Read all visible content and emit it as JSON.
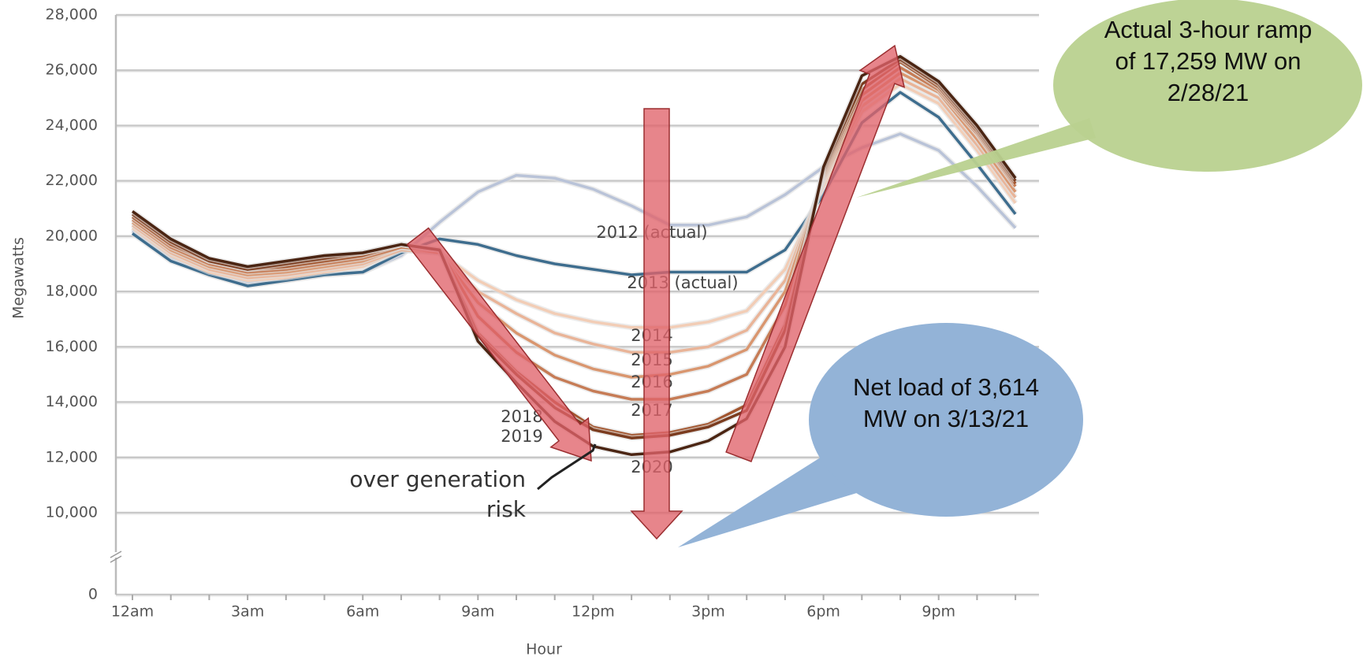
{
  "chart_data": {
    "type": "line",
    "x_label": "Hour",
    "y_label": "Megawatts",
    "categories": [
      "12am",
      null,
      null,
      "3am",
      null,
      null,
      "6am",
      null,
      null,
      "9am",
      null,
      null,
      "12pm",
      null,
      null,
      "3pm",
      null,
      null,
      "6pm",
      null,
      null,
      "9pm",
      null,
      null
    ],
    "ylim": [
      0,
      28000
    ],
    "y_break": [
      0,
      10000
    ],
    "yticks": [
      {
        "value": 0,
        "label": "0"
      },
      {
        "value": 10000,
        "label": "10,000"
      },
      {
        "value": 12000,
        "label": "12,000"
      },
      {
        "value": 14000,
        "label": "14,000"
      },
      {
        "value": 16000,
        "label": "16,000"
      },
      {
        "value": 18000,
        "label": "18,000"
      },
      {
        "value": 20000,
        "label": "20,000"
      },
      {
        "value": 22000,
        "label": "22,000"
      },
      {
        "value": 24000,
        "label": "24,000"
      },
      {
        "value": 26000,
        "label": "26,000"
      },
      {
        "value": 28000,
        "label": "28,000"
      }
    ],
    "grid": true,
    "series": [
      {
        "name": "2012 (actual)",
        "color": "#b9c3d8",
        "values": [
          20200,
          19200,
          18600,
          18300,
          18400,
          18600,
          18700,
          19300,
          20500,
          21600,
          22200,
          22100,
          21700,
          21100,
          20400,
          20400,
          20700,
          21500,
          22500,
          23200,
          23700,
          23100,
          21800,
          20300
        ]
      },
      {
        "name": "2013 (actual)",
        "color": "#3e6d8e",
        "values": [
          20100,
          19100,
          18600,
          18200,
          18400,
          18600,
          18700,
          19400,
          19900,
          19700,
          19300,
          19000,
          18800,
          18600,
          18700,
          18700,
          18700,
          19500,
          21500,
          24100,
          25200,
          24300,
          22600,
          20800
        ]
      },
      {
        "name": "2014",
        "color": "#f2cdb6",
        "values": [
          20300,
          19300,
          18700,
          18400,
          18500,
          18700,
          18900,
          19500,
          19400,
          18400,
          17700,
          17200,
          16900,
          16700,
          16700,
          16900,
          17300,
          18800,
          21800,
          24500,
          25500,
          24800,
          23100,
          21200
        ]
      },
      {
        "name": "2015",
        "color": "#e9b498",
        "values": [
          20400,
          19400,
          18800,
          18500,
          18600,
          18800,
          19000,
          19500,
          19400,
          18000,
          17200,
          16500,
          16100,
          15800,
          15800,
          16000,
          16600,
          18400,
          22000,
          24700,
          25700,
          25000,
          23300,
          21400
        ]
      },
      {
        "name": "2016",
        "color": "#d9966f",
        "values": [
          20500,
          19500,
          18900,
          18600,
          18700,
          18900,
          19100,
          19600,
          19400,
          17600,
          16500,
          15700,
          15200,
          14900,
          15000,
          15300,
          15900,
          18000,
          22100,
          24900,
          25900,
          25200,
          23500,
          21600
        ]
      },
      {
        "name": "2017",
        "color": "#c67c56",
        "values": [
          20600,
          19600,
          19000,
          18700,
          18800,
          19000,
          19200,
          19600,
          19500,
          17100,
          15800,
          14900,
          14400,
          14100,
          14100,
          14400,
          15000,
          17500,
          22200,
          25100,
          26100,
          25300,
          23700,
          21800
        ]
      },
      {
        "name": "2018",
        "color": "#a2552e",
        "values": [
          20700,
          19700,
          19100,
          18800,
          18900,
          19100,
          19300,
          19700,
          19500,
          16500,
          15100,
          14000,
          13100,
          12800,
          12900,
          13200,
          13900,
          16800,
          22300,
          25300,
          26300,
          25400,
          23800,
          21900
        ]
      },
      {
        "name": "2019",
        "color": "#7b3c1f",
        "values": [
          20800,
          19800,
          19100,
          18800,
          19000,
          19200,
          19400,
          19700,
          19500,
          16400,
          15000,
          13800,
          13000,
          12700,
          12800,
          13100,
          13700,
          16600,
          22400,
          25500,
          26400,
          25500,
          23900,
          22000
        ]
      },
      {
        "name": "2020",
        "color": "#4b2513",
        "values": [
          20900,
          19900,
          19200,
          18900,
          19100,
          19300,
          19400,
          19700,
          19500,
          16200,
          14700,
          13300,
          12400,
          12100,
          12200,
          12600,
          13400,
          16000,
          22500,
          25800,
          26500,
          25600,
          24000,
          22100
        ]
      }
    ],
    "annotation_risk": "over generation risk",
    "callout_ramp": "Actual 3-hour ramp of 17,259 MW on 2/28/21",
    "callout_net_load": "Net load of 3,614 MW on 3/13/21"
  }
}
